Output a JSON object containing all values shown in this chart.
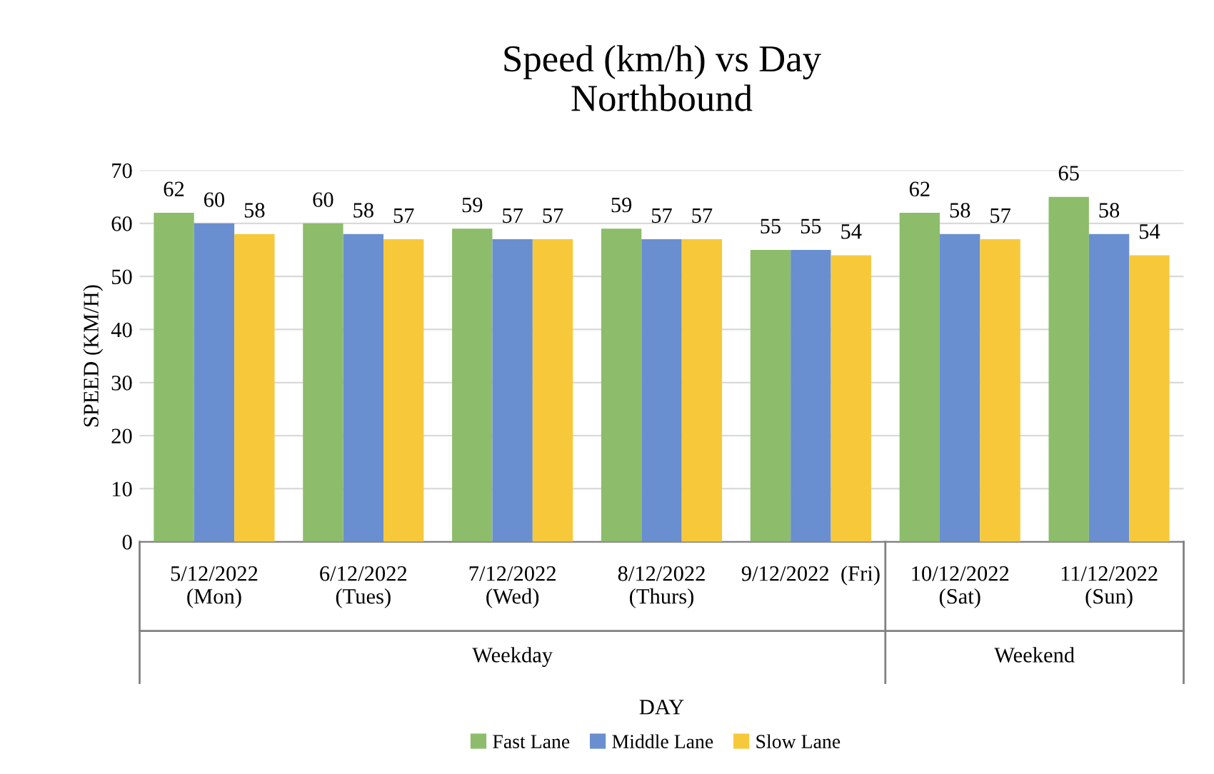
{
  "chart_data": {
    "type": "bar",
    "title": "Speed (km/h) vs Day\nNorthbound",
    "xlabel": "DAY",
    "ylabel": "SPEED (KM/H)",
    "categories": [
      "5/12/2022\n(Mon)",
      "6/12/2022\n(Tues)",
      "7/12/2022\n(Wed)",
      "8/12/2022\n(Thurs)",
      "9/12/2022  (Fri)",
      "10/12/2022\n(Sat)",
      "11/12/2022\n(Sun)"
    ],
    "series": [
      {
        "name": "Fast Lane",
        "color": "#8dbd6a",
        "values": [
          62,
          60,
          59,
          59,
          55,
          62,
          65
        ]
      },
      {
        "name": "Middle Lane",
        "color": "#6a8fd0",
        "values": [
          60,
          58,
          57,
          57,
          55,
          58,
          58
        ]
      },
      {
        "name": "Slow Lane",
        "color": "#f7c93a",
        "values": [
          58,
          57,
          57,
          57,
          54,
          57,
          54
        ]
      }
    ],
    "annotations": [
      "Weekday",
      "Weekend"
    ],
    "ylim": [
      0,
      70
    ],
    "yticks": [
      0,
      10,
      20,
      30,
      40,
      50,
      60,
      70
    ],
    "grid": "y",
    "legend": "bottom",
    "data_labels": true
  }
}
